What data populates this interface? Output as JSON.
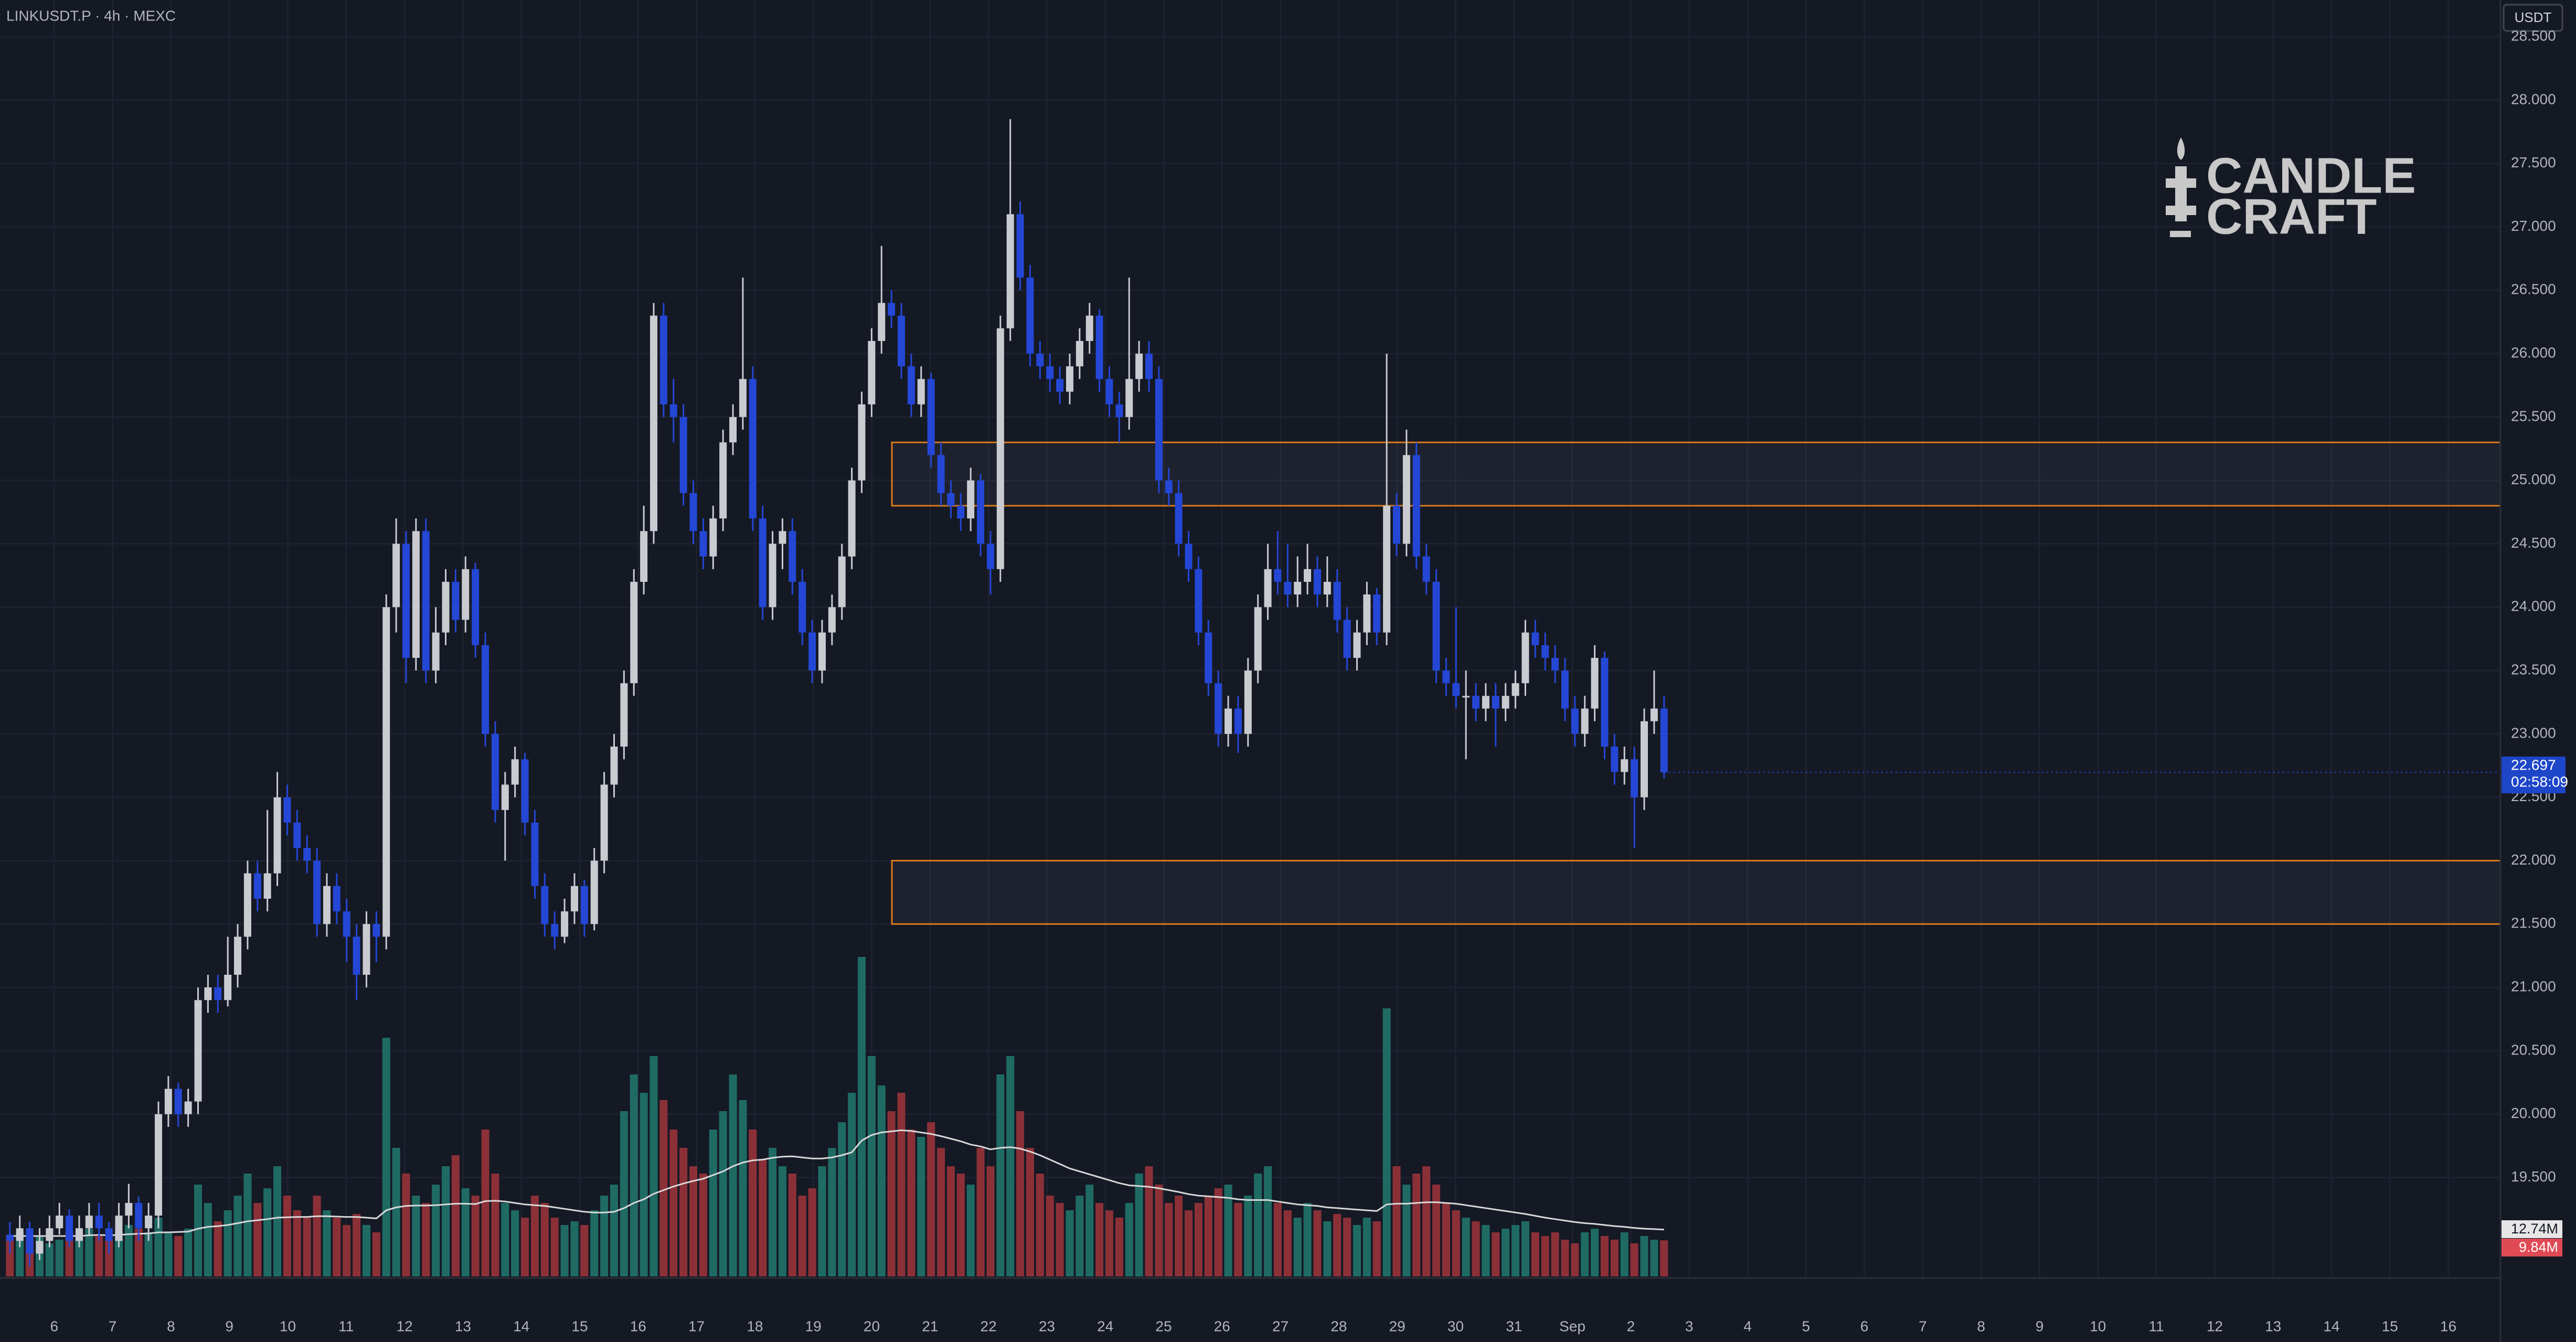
{
  "chart_data": {
    "type": "candlestick",
    "title": "LINKUSDT.P · 4h · MEXC",
    "currency": "USDT",
    "countdown": "02:58:09",
    "logo": [
      "CANDLE",
      "CRAFT"
    ],
    "up_color": "#c9cbd1",
    "down_color": "#2447d6",
    "volume_up_color": "#1f6b64",
    "volume_down_color": "#8c3038",
    "zone_color": "#d9791c",
    "grid": true,
    "ylim": [
      18.72,
      28.79
    ],
    "yticks": [
      {
        "value": 19.5,
        "label": "19.500"
      },
      {
        "value": 20,
        "label": "20.000"
      },
      {
        "value": 20.5,
        "label": "20.500"
      },
      {
        "value": 21,
        "label": "21.000"
      },
      {
        "value": 21.5,
        "label": "21.500"
      },
      {
        "value": 22,
        "label": "22.000"
      },
      {
        "value": 22.5,
        "label": "22.500"
      },
      {
        "value": 23,
        "label": "23.000"
      },
      {
        "value": 23.5,
        "label": "23.500"
      },
      {
        "value": 24,
        "label": "24.000"
      },
      {
        "value": 24.5,
        "label": "24.500"
      },
      {
        "value": 25,
        "label": "25.000"
      },
      {
        "value": 25.5,
        "label": "25.500"
      },
      {
        "value": 26,
        "label": "26.000"
      },
      {
        "value": 26.5,
        "label": "26.500"
      },
      {
        "value": 27,
        "label": "27.000"
      },
      {
        "value": 27.5,
        "label": "27.500"
      },
      {
        "value": 28,
        "label": "28.000"
      },
      {
        "value": 28.5,
        "label": "28.500"
      }
    ],
    "xtick_labels": [
      "6",
      "7",
      "8",
      "9",
      "10",
      "11",
      "12",
      "13",
      "14",
      "15",
      "16",
      "17",
      "18",
      "19",
      "20",
      "21",
      "22",
      "23",
      "24",
      "25",
      "26",
      "27",
      "28",
      "29",
      "30",
      "31",
      "Sep",
      "2",
      "3",
      "4",
      "5",
      "6",
      "7",
      "8",
      "9",
      "10",
      "11",
      "12",
      "13",
      "14",
      "15",
      "16"
    ],
    "zones": [
      {
        "top": 25.3,
        "bottom": 24.8
      },
      {
        "top": 22.0,
        "bottom": 21.5
      }
    ],
    "candles": [
      [
        19.05,
        19.15,
        18.9,
        19.0
      ],
      [
        19.0,
        19.2,
        18.95,
        19.1
      ],
      [
        19.1,
        19.15,
        18.8,
        18.9
      ],
      [
        18.9,
        19.1,
        18.85,
        19.0
      ],
      [
        19.0,
        19.2,
        18.95,
        19.1
      ],
      [
        19.1,
        19.3,
        19.05,
        19.2
      ],
      [
        19.2,
        19.25,
        18.95,
        19.0
      ],
      [
        19.0,
        19.2,
        18.95,
        19.1
      ],
      [
        19.1,
        19.3,
        19.05,
        19.2
      ],
      [
        19.2,
        19.3,
        19.0,
        19.1
      ],
      [
        19.1,
        19.15,
        18.9,
        19.0
      ],
      [
        19.0,
        19.3,
        18.95,
        19.2
      ],
      [
        19.2,
        19.45,
        19.1,
        19.3
      ],
      [
        19.3,
        19.35,
        19.0,
        19.1
      ],
      [
        19.1,
        19.3,
        19.0,
        19.2
      ],
      [
        19.2,
        20.1,
        19.1,
        20.0
      ],
      [
        20.0,
        20.3,
        19.9,
        20.2
      ],
      [
        20.2,
        20.25,
        19.9,
        20.0
      ],
      [
        20.0,
        20.2,
        19.9,
        20.1
      ],
      [
        20.1,
        21.0,
        20.0,
        20.9
      ],
      [
        20.9,
        21.1,
        20.8,
        21.0
      ],
      [
        21.0,
        21.1,
        20.8,
        20.9
      ],
      [
        20.9,
        21.4,
        20.85,
        21.1
      ],
      [
        21.1,
        21.5,
        21.0,
        21.4
      ],
      [
        21.4,
        22.0,
        21.3,
        21.9
      ],
      [
        21.9,
        22.0,
        21.6,
        21.7
      ],
      [
        21.7,
        22.4,
        21.6,
        21.9
      ],
      [
        21.9,
        22.7,
        21.8,
        22.5
      ],
      [
        22.5,
        22.6,
        22.2,
        22.3
      ],
      [
        22.3,
        22.4,
        22.0,
        22.1
      ],
      [
        22.1,
        22.2,
        21.9,
        22.0
      ],
      [
        22.0,
        22.1,
        21.4,
        21.5
      ],
      [
        21.5,
        21.9,
        21.4,
        21.8
      ],
      [
        21.8,
        21.9,
        21.5,
        21.6
      ],
      [
        21.6,
        21.7,
        21.2,
        21.4
      ],
      [
        21.4,
        21.5,
        20.9,
        21.1
      ],
      [
        21.1,
        21.6,
        21.0,
        21.5
      ],
      [
        21.5,
        21.6,
        21.2,
        21.4
      ],
      [
        21.4,
        24.1,
        21.3,
        24.0
      ],
      [
        24.0,
        24.7,
        23.8,
        24.5
      ],
      [
        24.5,
        24.6,
        23.4,
        23.6
      ],
      [
        23.6,
        24.7,
        23.5,
        24.6
      ],
      [
        24.6,
        24.7,
        23.4,
        23.5
      ],
      [
        23.5,
        24.0,
        23.4,
        23.8
      ],
      [
        23.8,
        24.3,
        23.7,
        24.2
      ],
      [
        24.2,
        24.3,
        23.8,
        23.9
      ],
      [
        23.9,
        24.4,
        23.8,
        24.3
      ],
      [
        24.3,
        24.35,
        23.6,
        23.7
      ],
      [
        23.7,
        23.8,
        22.9,
        23.0
      ],
      [
        23.0,
        23.1,
        22.3,
        22.4
      ],
      [
        22.4,
        22.7,
        22.0,
        22.6
      ],
      [
        22.6,
        22.9,
        22.5,
        22.8
      ],
      [
        22.8,
        22.85,
        22.2,
        22.3
      ],
      [
        22.3,
        22.4,
        21.7,
        21.8
      ],
      [
        21.8,
        21.9,
        21.4,
        21.5
      ],
      [
        21.5,
        21.6,
        21.3,
        21.4
      ],
      [
        21.4,
        21.7,
        21.35,
        21.6
      ],
      [
        21.6,
        21.9,
        21.5,
        21.8
      ],
      [
        21.8,
        21.85,
        21.4,
        21.5
      ],
      [
        21.5,
        22.1,
        21.45,
        22.0
      ],
      [
        22.0,
        22.7,
        21.9,
        22.6
      ],
      [
        22.6,
        23.0,
        22.5,
        22.9
      ],
      [
        22.9,
        23.5,
        22.8,
        23.4
      ],
      [
        23.4,
        24.3,
        23.3,
        24.2
      ],
      [
        24.2,
        24.8,
        24.1,
        24.6
      ],
      [
        24.6,
        26.4,
        24.5,
        26.3
      ],
      [
        26.3,
        26.4,
        25.5,
        25.6
      ],
      [
        25.6,
        25.8,
        25.3,
        25.5
      ],
      [
        25.5,
        25.6,
        24.8,
        24.9
      ],
      [
        24.9,
        25.0,
        24.5,
        24.6
      ],
      [
        24.6,
        24.7,
        24.3,
        24.4
      ],
      [
        24.4,
        24.8,
        24.3,
        24.7
      ],
      [
        24.7,
        25.4,
        24.6,
        25.3
      ],
      [
        25.3,
        25.6,
        25.2,
        25.5
      ],
      [
        25.5,
        26.6,
        25.4,
        25.8
      ],
      [
        25.8,
        25.9,
        24.6,
        24.7
      ],
      [
        24.7,
        24.8,
        23.9,
        24.0
      ],
      [
        24.0,
        24.6,
        23.9,
        24.5
      ],
      [
        24.5,
        24.7,
        24.3,
        24.6
      ],
      [
        24.6,
        24.7,
        24.1,
        24.2
      ],
      [
        24.2,
        24.3,
        23.7,
        23.8
      ],
      [
        23.8,
        23.9,
        23.4,
        23.5
      ],
      [
        23.5,
        23.9,
        23.4,
        23.8
      ],
      [
        23.8,
        24.1,
        23.7,
        24.0
      ],
      [
        24.0,
        24.5,
        23.9,
        24.4
      ],
      [
        24.4,
        25.1,
        24.3,
        25.0
      ],
      [
        25.0,
        25.7,
        24.9,
        25.6
      ],
      [
        25.6,
        26.2,
        25.5,
        26.1
      ],
      [
        26.1,
        26.85,
        26.0,
        26.4
      ],
      [
        26.4,
        26.5,
        26.2,
        26.3
      ],
      [
        26.3,
        26.4,
        25.8,
        25.9
      ],
      [
        25.9,
        26.0,
        25.5,
        25.6
      ],
      [
        25.6,
        25.9,
        25.5,
        25.8
      ],
      [
        25.8,
        25.85,
        25.1,
        25.2
      ],
      [
        25.2,
        25.3,
        24.8,
        24.9
      ],
      [
        24.9,
        25.0,
        24.7,
        24.8
      ],
      [
        24.8,
        24.9,
        24.6,
        24.7
      ],
      [
        24.7,
        25.1,
        24.6,
        25.0
      ],
      [
        25.0,
        25.05,
        24.4,
        24.5
      ],
      [
        24.5,
        24.6,
        24.1,
        24.3
      ],
      [
        24.3,
        26.3,
        24.2,
        26.2
      ],
      [
        26.2,
        27.85,
        26.1,
        27.1
      ],
      [
        27.1,
        27.2,
        26.5,
        26.6
      ],
      [
        26.6,
        26.7,
        25.9,
        26.0
      ],
      [
        26.0,
        26.1,
        25.8,
        25.9
      ],
      [
        25.9,
        26.0,
        25.7,
        25.8
      ],
      [
        25.8,
        25.9,
        25.6,
        25.7
      ],
      [
        25.7,
        26.0,
        25.6,
        25.9
      ],
      [
        25.9,
        26.2,
        25.8,
        26.1
      ],
      [
        26.1,
        26.4,
        26.0,
        26.3
      ],
      [
        26.3,
        26.35,
        25.7,
        25.8
      ],
      [
        25.8,
        25.9,
        25.5,
        25.6
      ],
      [
        25.6,
        25.7,
        25.3,
        25.5
      ],
      [
        25.5,
        26.6,
        25.4,
        25.8
      ],
      [
        25.8,
        26.1,
        25.7,
        26.0
      ],
      [
        26.0,
        26.1,
        25.7,
        25.8
      ],
      [
        25.8,
        25.9,
        24.9,
        25.0
      ],
      [
        25.0,
        25.1,
        24.8,
        24.9
      ],
      [
        24.9,
        25.0,
        24.4,
        24.5
      ],
      [
        24.5,
        24.6,
        24.2,
        24.3
      ],
      [
        24.3,
        24.4,
        23.7,
        23.8
      ],
      [
        23.8,
        23.9,
        23.3,
        23.4
      ],
      [
        23.4,
        23.5,
        22.9,
        23.0
      ],
      [
        23.0,
        23.3,
        22.9,
        23.2
      ],
      [
        23.2,
        23.3,
        22.85,
        23.0
      ],
      [
        23.0,
        23.6,
        22.9,
        23.5
      ],
      [
        23.5,
        24.1,
        23.4,
        24.0
      ],
      [
        24.0,
        24.5,
        23.9,
        24.3
      ],
      [
        24.3,
        24.6,
        24.1,
        24.2
      ],
      [
        24.2,
        24.5,
        24.0,
        24.1
      ],
      [
        24.1,
        24.4,
        24.0,
        24.2
      ],
      [
        24.2,
        24.5,
        24.1,
        24.3
      ],
      [
        24.3,
        24.4,
        24.0,
        24.1
      ],
      [
        24.1,
        24.4,
        24.0,
        24.2
      ],
      [
        24.2,
        24.3,
        23.8,
        23.9
      ],
      [
        23.9,
        24.0,
        23.5,
        23.6
      ],
      [
        23.6,
        23.9,
        23.5,
        23.8
      ],
      [
        23.8,
        24.2,
        23.7,
        24.1
      ],
      [
        24.1,
        24.15,
        23.7,
        23.8
      ],
      [
        23.8,
        26.0,
        23.7,
        24.8
      ],
      [
        24.8,
        24.9,
        24.4,
        24.5
      ],
      [
        24.5,
        25.4,
        24.4,
        25.2
      ],
      [
        25.2,
        25.3,
        24.3,
        24.4
      ],
      [
        24.4,
        24.5,
        24.1,
        24.2
      ],
      [
        24.2,
        24.3,
        23.4,
        23.5
      ],
      [
        23.5,
        23.6,
        23.3,
        23.4
      ],
      [
        23.4,
        24.0,
        23.2,
        23.3
      ],
      [
        23.3,
        23.5,
        22.8,
        23.3
      ],
      [
        23.3,
        23.4,
        23.1,
        23.2
      ],
      [
        23.2,
        23.4,
        23.1,
        23.3
      ],
      [
        23.3,
        23.4,
        22.9,
        23.2
      ],
      [
        23.2,
        23.4,
        23.1,
        23.3
      ],
      [
        23.3,
        23.5,
        23.2,
        23.4
      ],
      [
        23.4,
        23.9,
        23.3,
        23.8
      ],
      [
        23.8,
        23.9,
        23.6,
        23.7
      ],
      [
        23.7,
        23.8,
        23.5,
        23.6
      ],
      [
        23.6,
        23.7,
        23.4,
        23.5
      ],
      [
        23.5,
        23.6,
        23.1,
        23.2
      ],
      [
        23.2,
        23.3,
        22.9,
        23.0
      ],
      [
        23.0,
        23.3,
        22.9,
        23.2
      ],
      [
        23.2,
        23.7,
        23.1,
        23.6
      ],
      [
        23.6,
        23.65,
        22.8,
        22.9
      ],
      [
        22.9,
        23.0,
        22.6,
        22.7
      ],
      [
        22.7,
        22.9,
        22.6,
        22.8
      ],
      [
        22.8,
        22.9,
        22.1,
        22.5
      ],
      [
        22.5,
        23.2,
        22.4,
        23.1
      ],
      [
        23.1,
        23.5,
        23.0,
        23.2
      ],
      [
        23.2,
        23.3,
        22.65,
        22.697
      ]
    ],
    "volume": [
      11,
      12,
      10,
      11,
      9,
      10,
      12,
      11,
      13,
      11,
      10,
      12,
      14,
      13,
      12,
      16,
      12,
      11,
      13,
      25,
      20,
      15,
      18,
      22,
      28,
      20,
      24,
      30,
      22,
      18,
      16,
      22,
      18,
      16,
      14,
      17,
      14,
      12,
      65,
      35,
      28,
      22,
      20,
      25,
      30,
      33,
      24,
      22,
      40,
      28,
      20,
      18,
      16,
      22,
      20,
      16,
      14,
      15,
      14,
      18,
      22,
      25,
      45,
      55,
      50,
      60,
      48,
      40,
      35,
      30,
      28,
      40,
      45,
      55,
      48,
      40,
      32,
      35,
      30,
      28,
      22,
      24,
      30,
      35,
      42,
      50,
      87,
      60,
      52,
      45,
      50,
      40,
      38,
      42,
      35,
      30,
      28,
      25,
      35,
      30,
      55,
      60,
      45,
      35,
      28,
      22,
      20,
      18,
      22,
      25,
      20,
      18,
      16,
      20,
      28,
      30,
      25,
      20,
      22,
      18,
      20,
      22,
      24,
      25,
      20,
      22,
      28,
      30,
      20,
      18,
      16,
      20,
      18,
      15,
      17,
      16,
      14,
      16,
      15,
      73,
      30,
      25,
      28,
      30,
      25,
      20,
      18,
      16,
      15,
      14,
      12,
      13,
      14,
      15,
      12,
      11,
      12,
      10,
      9,
      12,
      13,
      11,
      10,
      12,
      9,
      11,
      10,
      9.84
    ],
    "volume_label": "9.84M",
    "volume_ma": [
      11,
      11,
      11,
      11,
      11,
      11,
      11,
      11,
      11.2,
      11.3,
      11.2,
      11.3,
      11.5,
      11.6,
      11.7,
      12,
      12,
      12.1,
      12.2,
      13,
      13.5,
      13.7,
      14,
      14.5,
      15,
      15.3,
      15.6,
      16,
      16.1,
      16.2,
      16.2,
      16.4,
      16.4,
      16.3,
      16.2,
      16.2,
      16,
      15.8,
      18,
      18.8,
      19.2,
      19.3,
      19.3,
      19.4,
      19.6,
      19.8,
      19.8,
      19.7,
      20.5,
      20.6,
      20.4,
      20,
      19.6,
      19.4,
      19.2,
      18.8,
      18.4,
      18,
      17.6,
      17.4,
      17.4,
      17.6,
      18.6,
      20,
      21,
      22.5,
      23.5,
      24.5,
      25.3,
      26,
      26.6,
      27.6,
      28.6,
      30,
      31,
      31.6,
      31.8,
      32.3,
      32.6,
      32.7,
      32.4,
      32.1,
      32.1,
      32.4,
      33,
      33.8,
      37,
      38.5,
      39.2,
      39.5,
      39.8,
      39.6,
      39.2,
      38.8,
      38.2,
      37.5,
      36.8,
      35.9,
      35.4,
      34.6,
      35,
      35.2,
      34.8,
      34,
      33,
      31.8,
      30.6,
      29.4,
      28.6,
      27.8,
      27,
      26.2,
      25.4,
      24.8,
      24.6,
      24.4,
      24,
      23.5,
      23,
      22.4,
      22,
      21.8,
      21.6,
      21.4,
      21,
      20.8,
      20.8,
      20.8,
      20.4,
      20,
      19.6,
      19.4,
      19.2,
      18.8,
      18.6,
      18.4,
      18.2,
      18,
      17.8,
      19.6,
      19.8,
      19.8,
      20,
      20.2,
      20.2,
      20,
      19.8,
      19.4,
      19,
      18.6,
      18.2,
      17.8,
      17.4,
      17,
      16.5,
      16,
      15.6,
      15.2,
      14.8,
      14.5,
      14.3,
      14,
      13.7,
      13.5,
      13.2,
      13,
      12.9,
      12.74
    ],
    "volume_ma_label": "12.74M"
  }
}
